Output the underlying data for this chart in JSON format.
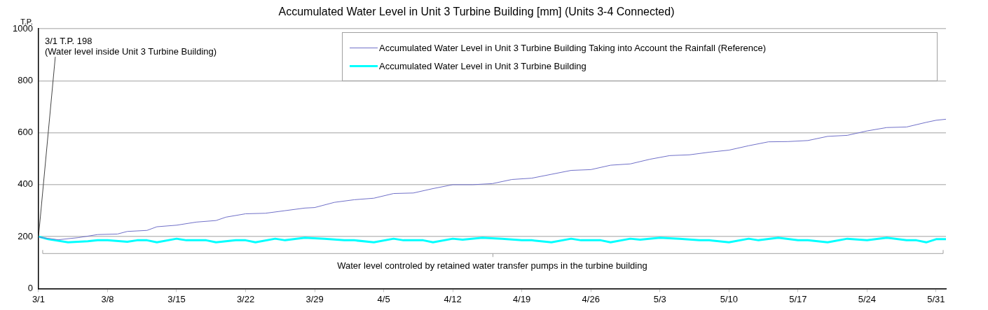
{
  "chart_data": {
    "type": "line",
    "title": "Accumulated Water Level in Unit 3 Turbine Building [mm] (Units 3-4 Connected)",
    "ylabel": "T.P.",
    "xlim": [
      "--03-01",
      "--06-01"
    ],
    "ylim": [
      0,
      1000
    ],
    "yticks": [
      0,
      200,
      400,
      600,
      800,
      1000
    ],
    "xticks": [
      {
        "value": "--03-01",
        "label": "3/1"
      },
      {
        "value": "--03-08",
        "label": "3/8"
      },
      {
        "value": "--03-15",
        "label": "3/15"
      },
      {
        "value": "--03-22",
        "label": "3/22"
      },
      {
        "value": "--03-29",
        "label": "3/29"
      },
      {
        "value": "--04-05",
        "label": "4/5"
      },
      {
        "value": "--04-12",
        "label": "4/12"
      },
      {
        "value": "--04-19",
        "label": "4/19"
      },
      {
        "value": "--04-26",
        "label": "4/26"
      },
      {
        "value": "--05-03",
        "label": "5/3"
      },
      {
        "value": "--05-10",
        "label": "5/10"
      },
      {
        "value": "--05-17",
        "label": "5/17"
      },
      {
        "value": "--05-24",
        "label": "5/24"
      },
      {
        "value": "--05-31",
        "label": "5/31"
      }
    ],
    "grid": "y",
    "legend": "top right",
    "marker": "none",
    "line_style": "solid",
    "annotations": [
      {
        "text": "3/1 T.P. 198\n(Water level inside Unit 3 Turbine Building)",
        "x": "--03-01",
        "y": 198
      }
    ],
    "ref_lines": [
      {
        "axis": "y",
        "value": 135,
        "label": "Water level controled by retained water transfer pumps in the turbine building",
        "color": "#a0a0a0"
      }
    ],
    "series": [
      {
        "name": "Accumulated Water Level in Unit 3 Turbine Building Taking into Account the Rainfall (Reference)",
        "color": "#7070c8",
        "x": [
          "--03-01",
          "--03-03",
          "--03-05",
          "--03-07",
          "--03-09",
          "--03-10",
          "--03-12",
          "--03-13",
          "--03-15",
          "--03-17",
          "--03-19",
          "--03-20",
          "--03-22",
          "--03-24",
          "--03-26",
          "--03-28",
          "--03-29",
          "--03-31",
          "--04-02",
          "--04-04",
          "--04-06",
          "--04-08",
          "--04-10",
          "--04-12",
          "--04-14",
          "--04-16",
          "--04-18",
          "--04-20",
          "--04-22",
          "--04-24",
          "--04-26",
          "--04-28",
          "--04-30",
          "--05-02",
          "--05-04",
          "--05-06",
          "--05-08",
          "--05-10",
          "--05-12",
          "--05-14",
          "--05-16",
          "--05-18",
          "--05-20",
          "--05-22",
          "--05-24",
          "--05-26",
          "--05-28",
          "--05-30",
          "--05-31",
          "--06-01"
        ],
        "values": [
          198,
          188,
          196,
          208,
          210,
          220,
          224,
          238,
          244,
          256,
          262,
          275,
          288,
          290,
          300,
          310,
          312,
          332,
          342,
          348,
          366,
          368,
          385,
          400,
          400,
          404,
          420,
          425,
          440,
          455,
          458,
          475,
          480,
          498,
          512,
          515,
          525,
          533,
          550,
          565,
          566,
          570,
          586,
          590,
          607,
          620,
          622,
          640,
          648,
          652
        ]
      },
      {
        "name": "Accumulated Water Level in Unit 3 Turbine Building",
        "color": "#00ffff",
        "x": [
          "--03-01",
          "--03-02",
          "--03-04",
          "--03-06",
          "--03-07",
          "--03-08",
          "--03-10",
          "--03-11",
          "--03-12",
          "--03-13",
          "--03-15",
          "--03-16",
          "--03-18",
          "--03-19",
          "--03-21",
          "--03-22",
          "--03-23",
          "--03-25",
          "--03-26",
          "--03-28",
          "--03-30",
          "--04-01",
          "--04-02",
          "--04-04",
          "--04-06",
          "--04-07",
          "--04-09",
          "--04-10",
          "--04-12",
          "--04-13",
          "--04-15",
          "--04-17",
          "--04-19",
          "--04-20",
          "--04-22",
          "--04-24",
          "--04-25",
          "--04-27",
          "--04-28",
          "--04-30",
          "--05-01",
          "--05-03",
          "--05-05",
          "--05-07",
          "--05-08",
          "--05-10",
          "--05-12",
          "--05-13",
          "--05-15",
          "--05-17",
          "--05-18",
          "--05-20",
          "--05-22",
          "--05-24",
          "--05-26",
          "--05-28",
          "--05-29",
          "--05-30",
          "--05-31",
          "--06-01"
        ],
        "values": [
          200,
          190,
          178,
          182,
          186,
          186,
          180,
          186,
          186,
          178,
          192,
          186,
          186,
          178,
          186,
          186,
          178,
          192,
          186,
          196,
          192,
          186,
          186,
          178,
          192,
          186,
          186,
          178,
          192,
          188,
          196,
          192,
          186,
          186,
          178,
          192,
          186,
          186,
          178,
          192,
          188,
          196,
          192,
          186,
          186,
          178,
          192,
          186,
          196,
          186,
          186,
          178,
          192,
          186,
          196,
          186,
          186,
          178,
          190,
          190
        ]
      }
    ]
  }
}
